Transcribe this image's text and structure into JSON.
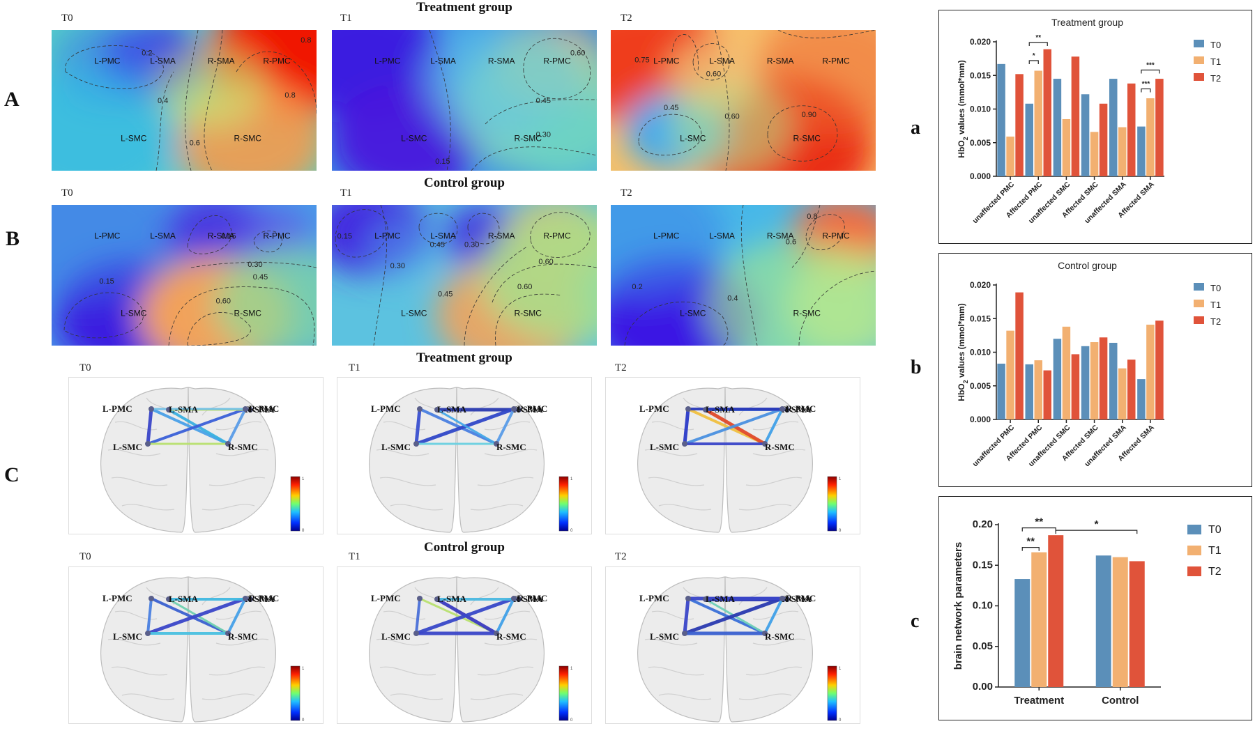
{
  "panels": {
    "A": "A",
    "B": "B",
    "C": "C",
    "a": "a",
    "b": "b",
    "c": "c"
  },
  "group_titles": {
    "A": "Treatment group",
    "B": "Control group",
    "C_top": "Treatment group",
    "C_bottom": "Control group"
  },
  "time_labels_A": [
    "T0",
    "T1",
    "T2"
  ],
  "time_labels_B": [
    "T0",
    "T1",
    "T2"
  ],
  "time_labels_C_top": [
    "T0",
    "T1",
    "T2"
  ],
  "time_labels_C_bottom": [
    "T0",
    "T1",
    "T2"
  ],
  "regions": [
    "L-PMC",
    "L-SMA",
    "R-SMA",
    "R-PMC",
    "L-SMC",
    "R-SMC"
  ],
  "contours": {
    "A0": [
      "0.2",
      "0.4",
      "0.6",
      "0.8",
      "0.8"
    ],
    "A1": [
      "0.60",
      "0.45",
      "0.30",
      "0.15"
    ],
    "A2": [
      "0.75",
      "0.60",
      "0.45",
      "0.60",
      "0.90"
    ],
    "B0": [
      "0.15",
      "0.30",
      "0.45",
      "0.60",
      "0.15"
    ],
    "B1": [
      "0.15",
      "0.30",
      "0.45",
      "0.30",
      "0.60",
      "0.60",
      "0.45"
    ],
    "B2": [
      "0.8",
      "0.6",
      "0.2",
      "0.4"
    ]
  },
  "colorbar_ticks": {
    "top": "1",
    "bottom": "0"
  },
  "colors": {
    "T0": "#5b8fb9",
    "T1": "#f2b071",
    "T2": "#e0533a"
  },
  "chart_data": [
    {
      "type": "bar",
      "title": "Treatment group",
      "categories": [
        "unaffected PMC",
        "Affected PMC",
        "unaffected SMC",
        "Affected SMC",
        "unaffected SMA",
        "Affected SMA"
      ],
      "series": [
        {
          "name": "T0",
          "values": [
            0.0167,
            0.0108,
            0.0145,
            0.0122,
            0.0145,
            0.0074
          ]
        },
        {
          "name": "T1",
          "values": [
            0.0059,
            0.0157,
            0.0085,
            0.0066,
            0.0073,
            0.0116
          ]
        },
        {
          "name": "T2",
          "values": [
            0.0152,
            0.0189,
            0.0178,
            0.0108,
            0.0138,
            0.0145
          ]
        }
      ],
      "ylabel": "HbO2 values (mmol*mm)",
      "ylabel_main": "HbO",
      "ylabel_sub": "2",
      "ylabel_rest": " values (mmol*mm)",
      "ylim": [
        0,
        0.02
      ],
      "yticks": [
        "0.000",
        "0.005",
        "0.010",
        "0.015",
        "0.020"
      ],
      "annotations": [
        "**",
        "*",
        "***",
        "***"
      ],
      "legend_position": "right"
    },
    {
      "type": "bar",
      "title": "Control group",
      "categories": [
        "unaffected PMC",
        "Affected PMC",
        "unaffected SMC",
        "Affected SMC",
        "unaffected SMA",
        "Affected SMA"
      ],
      "series": [
        {
          "name": "T0",
          "values": [
            0.0083,
            0.0082,
            0.012,
            0.0109,
            0.0114,
            0.006
          ]
        },
        {
          "name": "T1",
          "values": [
            0.0132,
            0.0088,
            0.0138,
            0.0115,
            0.0076,
            0.0141
          ]
        },
        {
          "name": "T2",
          "values": [
            0.0189,
            0.0073,
            0.0097,
            0.0122,
            0.0089,
            0.0147
          ]
        }
      ],
      "ylabel": "HbO2 values (mmol*mm)",
      "ylabel_main": "HbO",
      "ylabel_sub": "2",
      "ylabel_rest": " values (mmol*mm)",
      "ylim": [
        0,
        0.02
      ],
      "yticks": [
        "0.000",
        "0.005",
        "0.010",
        "0.015",
        "0.020"
      ],
      "legend_position": "right"
    },
    {
      "type": "bar",
      "title": "",
      "categories": [
        "Treatment",
        "Control"
      ],
      "series": [
        {
          "name": "T0",
          "values": [
            0.133,
            0.162
          ]
        },
        {
          "name": "T1",
          "values": [
            0.166,
            0.16
          ]
        },
        {
          "name": "T2",
          "values": [
            0.187,
            0.155
          ]
        }
      ],
      "ylabel": "brain network parameters",
      "ylim": [
        0,
        0.2
      ],
      "yticks": [
        "0.00",
        "0.05",
        "0.10",
        "0.15",
        "0.20"
      ],
      "annotations": [
        "**",
        "**",
        "*"
      ],
      "legend_position": "right"
    }
  ]
}
